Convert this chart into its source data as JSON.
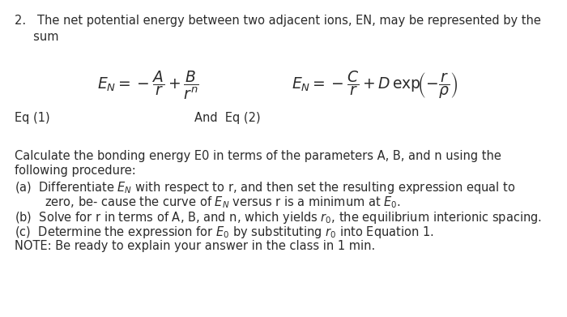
{
  "line1": "2.   The net potential energy between two adjacent ions, EN, may be represented by the",
  "line2": "     sum",
  "eq1_latex": "$E_N = -\\dfrac{A}{r} + \\dfrac{B}{r^n}$",
  "eq1_label": "Eq (1)",
  "eq2_latex": "$E_N = -\\dfrac{C}{r} + D\\,\\mathrm{exp}\\!\\left(-\\dfrac{r}{\\rho}\\right)$",
  "eq2_and_label": "And  Eq (2)",
  "body_lines": [
    "Calculate the bonding energy E0 in terms of the parameters A, B, and n using the",
    "following procedure:",
    "(a)  Differentiate $E_N$ with respect to r, and then set the resulting expression equal to",
    "        zero, be- cause the curve of $E_N$ versus r is a minimum at $E_0$.",
    "(b)  Solve for r in terms of A, B, and n, which yields $r_0$, the equilibrium interionic spacing.",
    "(c)  Determine the expression for $E_0$ by substituting $r_0$ into Equation 1.",
    "NOTE: Be ready to explain your answer in the class in 1 min."
  ],
  "bg_color": "#ffffff",
  "text_color": "#2b2b2b",
  "fontsize_body": 10.5,
  "fontsize_eq": 13.5
}
